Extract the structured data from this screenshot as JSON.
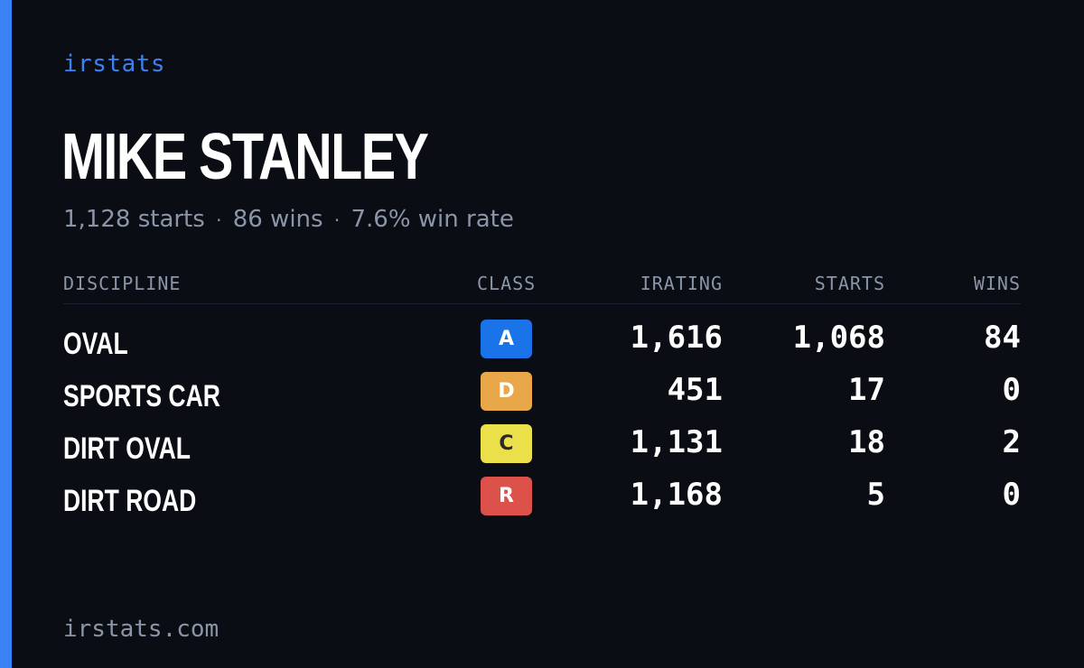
{
  "brand": "irstats",
  "driver": {
    "name": "MIKE STANLEY",
    "summary": {
      "starts": "1,128 starts",
      "wins": "86 wins",
      "win_rate": "7.6% win rate",
      "separator": "·"
    }
  },
  "table": {
    "headers": {
      "discipline": "DISCIPLINE",
      "class": "CLASS",
      "irating": "IRATING",
      "starts": "STARTS",
      "wins": "WINS"
    },
    "rows": [
      {
        "discipline": "OVAL",
        "class": "A",
        "class_color": "#1a73e8",
        "class_text_color": "#ffffff",
        "irating": "1,616",
        "starts": "1,068",
        "wins": "84"
      },
      {
        "discipline": "SPORTS CAR",
        "class": "D",
        "class_color": "#e8a84a",
        "class_text_color": "#ffffff",
        "irating": "451",
        "starts": "17",
        "wins": "0"
      },
      {
        "discipline": "DIRT OVAL",
        "class": "C",
        "class_color": "#ebe04a",
        "class_text_color": "#2a2a2a",
        "irating": "1,131",
        "starts": "18",
        "wins": "2"
      },
      {
        "discipline": "DIRT ROAD",
        "class": "R",
        "class_color": "#dc5149",
        "class_text_color": "#ffffff",
        "irating": "1,168",
        "starts": "5",
        "wins": "0"
      }
    ]
  },
  "footer": "irstats.com",
  "colors": {
    "accent": "#3b82f6",
    "background": "#0a0d14",
    "muted_text": "#8b95a8"
  }
}
